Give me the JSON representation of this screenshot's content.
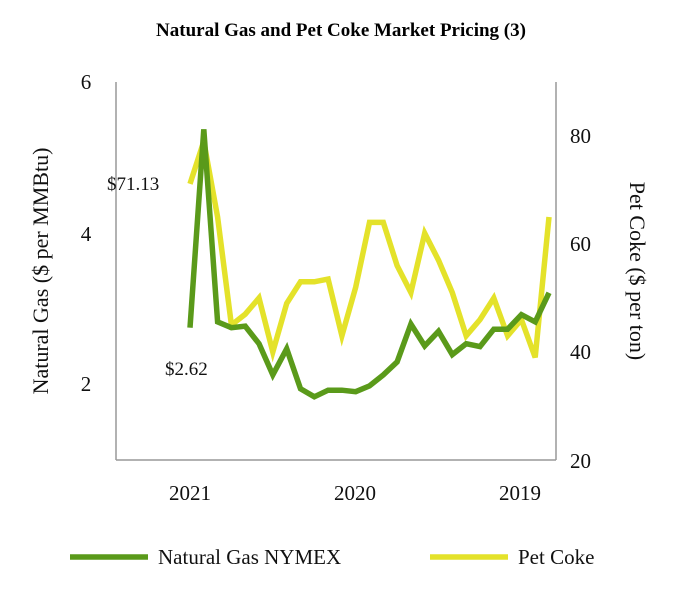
{
  "chart_data": {
    "type": "line",
    "title": "Natural Gas and Pet Coke Market Pricing (3)",
    "xlabel": "",
    "ylabel_left": "Natural Gas ($ per MMBtu)",
    "ylabel_right": "Pet Coke ($ per ton)",
    "ylim_left": [
      0.8,
      6
    ],
    "ylim_right": [
      20,
      90
    ],
    "yticks_left": [
      "2",
      "4",
      "6"
    ],
    "yticks_right": [
      "20",
      "40",
      "60",
      "80"
    ],
    "xticks": [
      "2021",
      "2020",
      "2019"
    ],
    "grid": false,
    "legend_position": "bottom",
    "colors": {
      "natural_gas": "#5a9a1a",
      "pet_coke": "#e4e22a",
      "axis": "#999999"
    },
    "annotations": [
      "$71.13",
      "$2.62"
    ],
    "series": [
      {
        "name": "Natural Gas NYMEX",
        "axis": "left",
        "values": [
          2.62,
          5.35,
          2.7,
          2.62,
          2.64,
          2.4,
          1.97,
          2.33,
          1.78,
          1.67,
          1.76,
          1.76,
          1.74,
          1.82,
          1.97,
          2.15,
          2.67,
          2.37,
          2.57,
          2.25,
          2.4,
          2.36,
          2.6,
          2.6,
          2.8,
          2.7,
          3.1
        ]
      },
      {
        "name": "Pet Coke",
        "axis": "right",
        "values": [
          71.13,
          79,
          65,
          45,
          47,
          50,
          40,
          49,
          53,
          53,
          53.5,
          43,
          52,
          64,
          64,
          56,
          51,
          62,
          57,
          51,
          43,
          46,
          50,
          43,
          46,
          39,
          65
        ]
      }
    ]
  }
}
